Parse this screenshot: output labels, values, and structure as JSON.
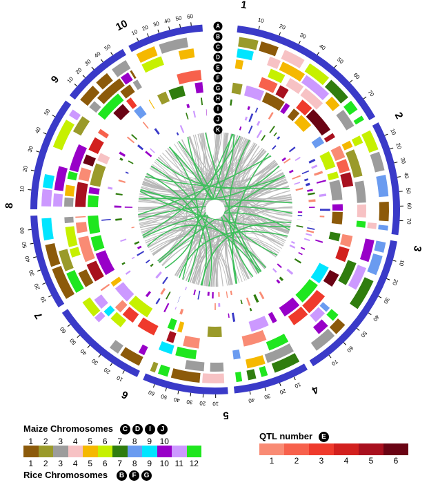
{
  "chromosomes": [
    {
      "number": "1",
      "ticks": [
        "10",
        "20",
        "30",
        "40",
        "50",
        "60",
        "70"
      ]
    },
    {
      "number": "2",
      "ticks": [
        "10",
        "20",
        "30",
        "40",
        "50",
        "60",
        "70"
      ]
    },
    {
      "number": "3",
      "ticks": [
        "10",
        "20",
        "30",
        "40",
        "50",
        "60",
        "70"
      ]
    },
    {
      "number": "4",
      "ticks": [
        "10",
        "20",
        "30",
        "40"
      ]
    },
    {
      "number": "5",
      "ticks": [
        "10",
        "20",
        "30",
        "40",
        "50",
        "60"
      ]
    },
    {
      "number": "6",
      "ticks": [
        "10",
        "20",
        "30",
        "40",
        "50",
        "60"
      ]
    },
    {
      "number": "7",
      "ticks": [
        "10",
        "20",
        "30",
        "40",
        "50",
        "60"
      ]
    },
    {
      "number": "8",
      "ticks": [
        "10",
        "20",
        "30",
        "40",
        "50"
      ]
    },
    {
      "number": "9",
      "ticks": [
        "10",
        "20",
        "30",
        "40",
        "50"
      ]
    },
    {
      "number": "10",
      "ticks": [
        "10",
        "20",
        "30",
        "40",
        "50",
        "60"
      ]
    }
  ],
  "track_letters": [
    "A",
    "B",
    "C",
    "D",
    "E",
    "F",
    "G",
    "H",
    "I",
    "J",
    "K"
  ],
  "legend": {
    "maize": {
      "title": "Maize Chromosomes",
      "badges": [
        "C",
        "D",
        "I",
        "J"
      ],
      "numbers": [
        "1",
        "2",
        "3",
        "4",
        "5",
        "6",
        "7",
        "8",
        "9",
        "10"
      ]
    },
    "rice": {
      "title": "Rice Chromosomes",
      "badges": [
        "B",
        "F",
        "G"
      ],
      "numbers": [
        "1",
        "2",
        "3",
        "4",
        "5",
        "6",
        "7",
        "8",
        "9",
        "10",
        "11",
        "12"
      ]
    },
    "qtl": {
      "title": "QTL number",
      "badge": "E",
      "numbers": [
        "1",
        "2",
        "3",
        "4",
        "5",
        "6"
      ]
    }
  },
  "colors": {
    "outer_ring": "#3a3ac8",
    "links_gray": "#b3b3b3",
    "links_green": "#3fbf5c",
    "chrom_palette": [
      "#8c5a0a",
      "#9a9a2a",
      "#9c9c9c",
      "#f7c2c4",
      "#f5b800",
      "#c6f000",
      "#2f7d0e",
      "#6a9bf0",
      "#00e5ff",
      "#9800c8",
      "#cc99ff",
      "#1fe61f"
    ],
    "qtl_palette": [
      "#f98b74",
      "#f7614c",
      "#ef3a2c",
      "#d2201e",
      "#a8101e",
      "#6a0414"
    ]
  }
}
